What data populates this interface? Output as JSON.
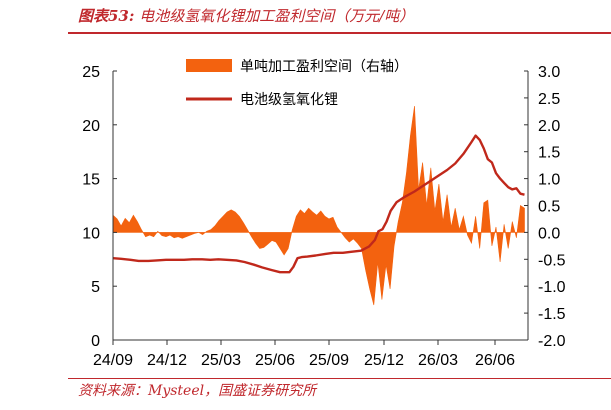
{
  "header": {
    "figure_label": "图表53:",
    "title": "电池级氢氧化锂加工盈利空间（万元/吨）"
  },
  "footer": {
    "source": "资料来源：Mysteel，国盛证券研究所"
  },
  "colors": {
    "accent_red": "#c0282d",
    "area_orange": "#f3620f",
    "line_red": "#c0281b"
  },
  "chart_data": {
    "type": "area",
    "x_tick_labels": [
      "24/09",
      "24/12",
      "25/03",
      "25/06",
      "25/09",
      "25/12",
      "26/03",
      "26/06"
    ],
    "left_axis": {
      "ticks": [
        "0",
        "5",
        "10",
        "15",
        "20",
        "25"
      ],
      "range": [
        0,
        25
      ]
    },
    "right_axis": {
      "ticks": [
        "-2.0",
        "-1.5",
        "-1.0",
        "-0.5",
        "0.0",
        "0.5",
        "1.0",
        "1.5",
        "2.0",
        "2.5",
        "3.0"
      ],
      "range": [
        -2.0,
        3.0
      ]
    },
    "legend": {
      "position": "top-center"
    },
    "series": [
      {
        "name": "单吨加工盈利空间（右轴）",
        "type": "area",
        "axis": "right",
        "color": "#f3620f",
        "points": [
          [
            "2024-09-01",
            0.32
          ],
          [
            "2024-09-08",
            0.25
          ],
          [
            "2024-09-15",
            0.12
          ],
          [
            "2024-09-22",
            0.26
          ],
          [
            "2024-09-29",
            0.18
          ],
          [
            "2024-10-06",
            0.32
          ],
          [
            "2024-10-13",
            0.2
          ],
          [
            "2024-10-20",
            0.05
          ],
          [
            "2024-10-27",
            -0.08
          ],
          [
            "2024-11-03",
            -0.05
          ],
          [
            "2024-11-10",
            -0.08
          ],
          [
            "2024-11-17",
            0.02
          ],
          [
            "2024-11-24",
            -0.06
          ],
          [
            "2024-12-01",
            -0.08
          ],
          [
            "2024-12-08",
            -0.05
          ],
          [
            "2024-12-15",
            -0.1
          ],
          [
            "2024-12-22",
            -0.08
          ],
          [
            "2024-12-29",
            -0.11
          ],
          [
            "2025-01-05",
            -0.08
          ],
          [
            "2025-01-12",
            -0.05
          ],
          [
            "2025-01-19",
            -0.02
          ],
          [
            "2025-01-26",
            0.0
          ],
          [
            "2025-02-02",
            -0.04
          ],
          [
            "2025-02-09",
            0.02
          ],
          [
            "2025-02-16",
            0.05
          ],
          [
            "2025-02-23",
            0.12
          ],
          [
            "2025-03-02",
            0.22
          ],
          [
            "2025-03-09",
            0.3
          ],
          [
            "2025-03-16",
            0.38
          ],
          [
            "2025-03-23",
            0.42
          ],
          [
            "2025-03-30",
            0.38
          ],
          [
            "2025-04-06",
            0.3
          ],
          [
            "2025-04-13",
            0.18
          ],
          [
            "2025-04-20",
            0.05
          ],
          [
            "2025-04-27",
            -0.08
          ],
          [
            "2025-05-04",
            -0.2
          ],
          [
            "2025-05-11",
            -0.3
          ],
          [
            "2025-05-18",
            -0.28
          ],
          [
            "2025-05-25",
            -0.22
          ],
          [
            "2025-06-01",
            -0.15
          ],
          [
            "2025-06-08",
            -0.18
          ],
          [
            "2025-06-15",
            -0.3
          ],
          [
            "2025-06-22",
            -0.42
          ],
          [
            "2025-06-29",
            -0.3
          ],
          [
            "2025-07-06",
            0.05
          ],
          [
            "2025-07-13",
            0.3
          ],
          [
            "2025-07-20",
            0.42
          ],
          [
            "2025-07-27",
            0.35
          ],
          [
            "2025-08-03",
            0.45
          ],
          [
            "2025-08-10",
            0.38
          ],
          [
            "2025-08-17",
            0.32
          ],
          [
            "2025-08-24",
            0.4
          ],
          [
            "2025-08-31",
            0.3
          ],
          [
            "2025-09-07",
            0.25
          ],
          [
            "2025-09-14",
            0.28
          ],
          [
            "2025-09-21",
            0.1
          ],
          [
            "2025-09-28",
            0.0
          ],
          [
            "2025-10-05",
            -0.1
          ],
          [
            "2025-10-12",
            -0.18
          ],
          [
            "2025-10-19",
            -0.12
          ],
          [
            "2025-10-26",
            -0.2
          ],
          [
            "2025-11-02",
            -0.3
          ],
          [
            "2025-11-09",
            -0.7
          ],
          [
            "2025-11-16",
            -1.05
          ],
          [
            "2025-11-23",
            -1.35
          ],
          [
            "2025-11-30",
            -0.55
          ],
          [
            "2025-12-07",
            -1.25
          ],
          [
            "2025-12-14",
            -0.6
          ],
          [
            "2025-12-21",
            -1.05
          ],
          [
            "2025-12-28",
            -0.25
          ],
          [
            "2026-01-04",
            0.2
          ],
          [
            "2026-01-11",
            0.55
          ],
          [
            "2026-01-18",
            1.1
          ],
          [
            "2026-01-25",
            1.8
          ],
          [
            "2026-02-01",
            2.35
          ],
          [
            "2026-02-08",
            0.8
          ],
          [
            "2026-02-15",
            1.3
          ],
          [
            "2026-02-22",
            0.5
          ],
          [
            "2026-03-01",
            1.2
          ],
          [
            "2026-03-08",
            0.4
          ],
          [
            "2026-03-15",
            0.9
          ],
          [
            "2026-03-22",
            0.2
          ],
          [
            "2026-03-29",
            0.7
          ],
          [
            "2026-04-05",
            0.1
          ],
          [
            "2026-04-12",
            0.45
          ],
          [
            "2026-04-19",
            0.05
          ],
          [
            "2026-04-26",
            0.3
          ],
          [
            "2026-05-03",
            -0.05
          ],
          [
            "2026-05-10",
            -0.2
          ],
          [
            "2026-05-17",
            0.3
          ],
          [
            "2026-05-24",
            -0.3
          ],
          [
            "2026-05-31",
            0.55
          ],
          [
            "2026-06-07",
            0.6
          ],
          [
            "2026-06-14",
            -0.25
          ],
          [
            "2026-06-21",
            0.1
          ],
          [
            "2026-06-28",
            -0.55
          ],
          [
            "2026-07-05",
            0.15
          ],
          [
            "2026-07-12",
            -0.3
          ],
          [
            "2026-07-19",
            0.2
          ],
          [
            "2026-07-26",
            -0.1
          ],
          [
            "2026-08-02",
            0.5
          ],
          [
            "2026-08-09",
            0.45
          ]
        ]
      },
      {
        "name": "电池级氢氧化锂",
        "type": "line",
        "axis": "left",
        "color": "#c0281b",
        "points": [
          [
            "2024-09-01",
            7.6
          ],
          [
            "2024-09-15",
            7.55
          ],
          [
            "2024-10-01",
            7.45
          ],
          [
            "2024-10-15",
            7.35
          ],
          [
            "2024-11-01",
            7.35
          ],
          [
            "2024-11-15",
            7.4
          ],
          [
            "2024-12-01",
            7.45
          ],
          [
            "2024-12-15",
            7.45
          ],
          [
            "2025-01-01",
            7.45
          ],
          [
            "2025-01-15",
            7.5
          ],
          [
            "2025-02-01",
            7.5
          ],
          [
            "2025-02-15",
            7.45
          ],
          [
            "2025-03-01",
            7.5
          ],
          [
            "2025-03-15",
            7.45
          ],
          [
            "2025-04-01",
            7.4
          ],
          [
            "2025-04-15",
            7.25
          ],
          [
            "2025-05-01",
            7.0
          ],
          [
            "2025-05-15",
            6.75
          ],
          [
            "2025-06-01",
            6.5
          ],
          [
            "2025-06-15",
            6.3
          ],
          [
            "2025-07-01",
            6.3
          ],
          [
            "2025-07-08",
            6.8
          ],
          [
            "2025-07-15",
            7.6
          ],
          [
            "2025-07-22",
            7.7
          ],
          [
            "2025-08-01",
            7.75
          ],
          [
            "2025-08-15",
            7.85
          ],
          [
            "2025-09-01",
            8.0
          ],
          [
            "2025-09-15",
            8.1
          ],
          [
            "2025-10-01",
            8.1
          ],
          [
            "2025-10-15",
            8.2
          ],
          [
            "2025-11-01",
            8.3
          ],
          [
            "2025-11-15",
            8.7
          ],
          [
            "2025-11-25",
            9.3
          ],
          [
            "2025-12-01",
            10.1
          ],
          [
            "2025-12-08",
            10.3
          ],
          [
            "2025-12-15",
            11.0
          ],
          [
            "2025-12-22",
            12.0
          ],
          [
            "2026-01-01",
            12.8
          ],
          [
            "2026-01-15",
            13.3
          ],
          [
            "2026-02-01",
            13.8
          ],
          [
            "2026-02-15",
            14.3
          ],
          [
            "2026-03-01",
            14.8
          ],
          [
            "2026-03-15",
            15.3
          ],
          [
            "2026-03-29",
            15.8
          ],
          [
            "2026-04-12",
            16.4
          ],
          [
            "2026-04-26",
            17.3
          ],
          [
            "2026-05-10",
            18.4
          ],
          [
            "2026-05-17",
            19.0
          ],
          [
            "2026-05-24",
            18.6
          ],
          [
            "2026-05-31",
            17.8
          ],
          [
            "2026-06-07",
            16.8
          ],
          [
            "2026-06-14",
            16.5
          ],
          [
            "2026-06-21",
            15.5
          ],
          [
            "2026-06-28",
            15.0
          ],
          [
            "2026-07-05",
            14.6
          ],
          [
            "2026-07-12",
            14.2
          ],
          [
            "2026-07-19",
            14.0
          ],
          [
            "2026-07-26",
            14.1
          ],
          [
            "2026-08-02",
            13.6
          ],
          [
            "2026-08-09",
            13.5
          ]
        ]
      }
    ]
  }
}
